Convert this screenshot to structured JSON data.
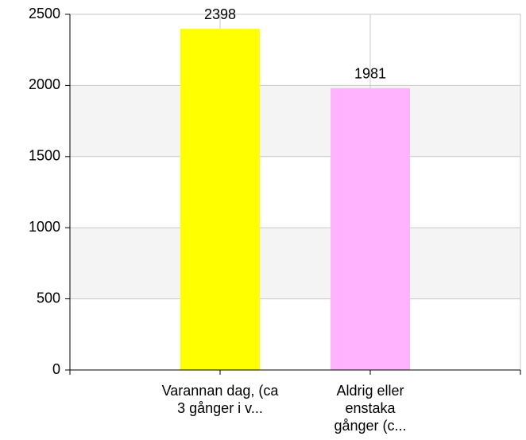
{
  "chart_data": {
    "type": "bar",
    "categories": [
      [
        "Varannan dag, (ca",
        "3 gånger i v..."
      ],
      [
        "Aldrig eller",
        "enstaka",
        "gånger (c..."
      ]
    ],
    "values": [
      2398,
      1981
    ],
    "colors": [
      "#ffff00",
      "#ffb3ff"
    ],
    "ylim": [
      0,
      2500
    ],
    "yticks": [
      0,
      500,
      1000,
      1500,
      2000,
      2500
    ],
    "grid": true
  }
}
